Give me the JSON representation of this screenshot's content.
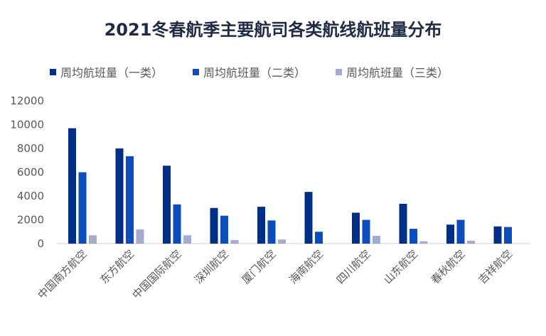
{
  "chart_data": {
    "type": "bar",
    "title": "2021冬春航季主要航司各类航线航班量分布",
    "categories": [
      "中国南方航空",
      "东方航空",
      "中国国际航空",
      "深圳航空",
      "厦门航空",
      "海南航空",
      "四川航空",
      "山东航空",
      "春秋航空",
      "吉祥航空"
    ],
    "series": [
      {
        "name": "周均航班量（一类）",
        "color": "#002f87",
        "values": [
          9700,
          8000,
          6550,
          3000,
          3100,
          4350,
          2600,
          3350,
          1600,
          1450
        ]
      },
      {
        "name": "周均航班量（二类）",
        "color": "#0b4dbb",
        "values": [
          6000,
          7350,
          3300,
          2350,
          1950,
          1000,
          2000,
          1250,
          2000,
          1400
        ]
      },
      {
        "name": "周均航班量（三类）",
        "color": "#a3abd1",
        "values": [
          700,
          1200,
          700,
          300,
          350,
          0,
          650,
          200,
          250,
          0
        ]
      }
    ],
    "yticks": [
      0,
      2000,
      4000,
      6000,
      8000,
      10000,
      12000
    ],
    "ylim": [
      0,
      12000
    ],
    "grid": false,
    "legend": "top"
  }
}
